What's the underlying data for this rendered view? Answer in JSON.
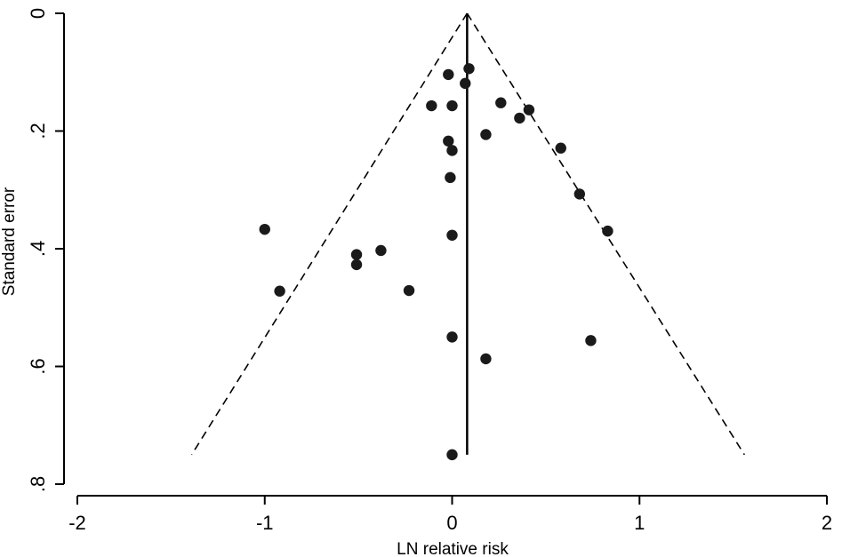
{
  "chart_data": {
    "type": "scatter",
    "xlabel": "LN relative risk",
    "ylabel": "Standard error",
    "xlim": [
      -2,
      2
    ],
    "ylim": [
      0,
      0.8
    ],
    "y_inverted": true,
    "x_ticks": [
      "-2",
      "-1",
      "0",
      "1",
      "2"
    ],
    "y_ticks": [
      "0",
      ".2",
      ".4",
      ".6",
      ".8"
    ],
    "x_tick_values": [
      -2,
      -1,
      0,
      1,
      2
    ],
    "y_tick_values": [
      0,
      0.2,
      0.4,
      0.6,
      0.8
    ],
    "grid": false,
    "pooled_estimate": 0.08,
    "pooled_line_se_range": [
      0,
      0.75
    ],
    "funnel_limits": {
      "apex": [
        0.08,
        0
      ],
      "left_base": [
        -1.39,
        0.75
      ],
      "right_base": [
        1.56,
        0.75
      ],
      "style": "dashed"
    },
    "points": [
      {
        "x": 0.09,
        "y": 0.094
      },
      {
        "x": -0.02,
        "y": 0.104
      },
      {
        "x": 0.07,
        "y": 0.119
      },
      {
        "x": -0.11,
        "y": 0.157
      },
      {
        "x": 0.0,
        "y": 0.157
      },
      {
        "x": 0.26,
        "y": 0.152
      },
      {
        "x": 0.41,
        "y": 0.164
      },
      {
        "x": 0.36,
        "y": 0.178
      },
      {
        "x": 0.18,
        "y": 0.206
      },
      {
        "x": -0.02,
        "y": 0.217
      },
      {
        "x": 0.0,
        "y": 0.233
      },
      {
        "x": 0.58,
        "y": 0.229
      },
      {
        "x": -0.01,
        "y": 0.279
      },
      {
        "x": 0.68,
        "y": 0.307
      },
      {
        "x": -1.0,
        "y": 0.367
      },
      {
        "x": 0.0,
        "y": 0.377
      },
      {
        "x": 0.83,
        "y": 0.37
      },
      {
        "x": -0.38,
        "y": 0.403
      },
      {
        "x": -0.51,
        "y": 0.41
      },
      {
        "x": -0.51,
        "y": 0.427
      },
      {
        "x": -0.92,
        "y": 0.472
      },
      {
        "x": -0.23,
        "y": 0.471
      },
      {
        "x": 0.0,
        "y": 0.55
      },
      {
        "x": 0.74,
        "y": 0.556
      },
      {
        "x": 0.18,
        "y": 0.587
      },
      {
        "x": 0.0,
        "y": 0.75
      }
    ]
  }
}
